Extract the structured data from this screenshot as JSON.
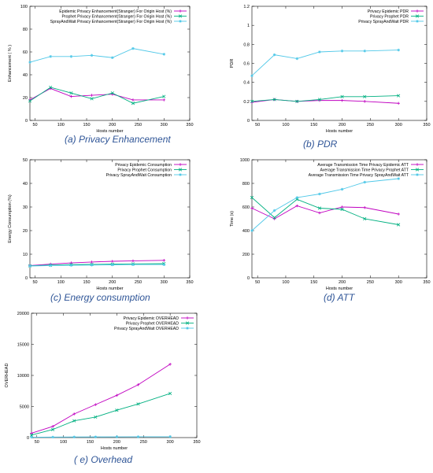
{
  "chart_data": [
    {
      "type": "line",
      "caption": "(a) Privacy Enhancement",
      "xlabel": "Hosts number",
      "ylabel": "Enhancement ( % )",
      "xlim": [
        40,
        350
      ],
      "ylim": [
        0,
        100
      ],
      "xticks": [
        50,
        100,
        150,
        200,
        250,
        300,
        350
      ],
      "yticks": [
        0,
        20,
        40,
        60,
        80,
        100
      ],
      "grid": false,
      "legend": "top-right",
      "series": [
        {
          "name": "Epidemic Privacy Enhancement(Stranger) For Origin Host (%)",
          "color": "#c000c0",
          "x": [
            40,
            80,
            120,
            160,
            200,
            240,
            300
          ],
          "y": [
            18,
            28,
            21,
            22,
            23,
            18,
            18
          ]
        },
        {
          "name": "Prophet  Privacy Enhancement(Stranger) For Origin Host (%)",
          "color": "#00b080",
          "x": [
            40,
            80,
            120,
            160,
            200,
            240,
            300
          ],
          "y": [
            17,
            29,
            24,
            19,
            24,
            15,
            21
          ]
        },
        {
          "name": "SprayAndWait  Privacy Enhancement(Stranger) For Origin Host (%)",
          "color": "#50c8e8",
          "x": [
            40,
            80,
            120,
            160,
            200,
            240,
            300
          ],
          "y": [
            51,
            56,
            56,
            57,
            55,
            63,
            58
          ]
        }
      ]
    },
    {
      "type": "line",
      "caption": "(b) PDR",
      "xlabel": "Hosts number",
      "ylabel": "PDR",
      "xlim": [
        40,
        350
      ],
      "ylim": [
        0,
        1.2
      ],
      "xticks": [
        50,
        100,
        150,
        200,
        250,
        300,
        350
      ],
      "yticks": [
        0,
        0.2,
        0.4,
        0.6,
        0.8,
        1,
        1.2
      ],
      "grid": false,
      "legend": "top-right",
      "series": [
        {
          "name": "Privacy Epidemic PDR",
          "color": "#c000c0",
          "x": [
            40,
            80,
            120,
            160,
            200,
            240,
            300
          ],
          "y": [
            0.19,
            0.22,
            0.2,
            0.21,
            0.21,
            0.2,
            0.18
          ]
        },
        {
          "name": "Privacy Prophet PDR",
          "color": "#00b080",
          "x": [
            40,
            80,
            120,
            160,
            200,
            240,
            300
          ],
          "y": [
            0.2,
            0.22,
            0.2,
            0.22,
            0.25,
            0.25,
            0.26
          ]
        },
        {
          "name": "Privacy SprayAndWait PDR",
          "color": "#50c8e8",
          "x": [
            40,
            80,
            120,
            160,
            200,
            240,
            300
          ],
          "y": [
            0.47,
            0.69,
            0.65,
            0.72,
            0.73,
            0.73,
            0.74
          ]
        }
      ]
    },
    {
      "type": "line",
      "caption": "(c) Energy consumption",
      "xlabel": "Hosts number",
      "ylabel": "Energy Consumption (%)",
      "xlim": [
        40,
        350
      ],
      "ylim": [
        0,
        50
      ],
      "xticks": [
        50,
        100,
        150,
        200,
        250,
        300,
        350
      ],
      "yticks": [
        0,
        10,
        20,
        30,
        40,
        50
      ],
      "grid": false,
      "legend": "top-right",
      "series": [
        {
          "name": "Privacy Epidemic Consumption",
          "color": "#c000c0",
          "x": [
            40,
            80,
            120,
            160,
            200,
            240,
            300
          ],
          "y": [
            5.2,
            5.8,
            6.3,
            6.7,
            7.0,
            7.2,
            7.4
          ]
        },
        {
          "name": "Privacy Prophet Consumption",
          "color": "#00b080",
          "x": [
            40,
            80,
            120,
            160,
            200,
            240,
            300
          ],
          "y": [
            5.1,
            5.4,
            5.6,
            5.7,
            5.8,
            5.9,
            6.0
          ]
        },
        {
          "name": "Privacy SprayAndWait Consumption",
          "color": "#50c8e8",
          "x": [
            40,
            80,
            120,
            160,
            200,
            240,
            300
          ],
          "y": [
            5.0,
            5.2,
            5.3,
            5.4,
            5.5,
            5.6,
            5.6
          ]
        }
      ]
    },
    {
      "type": "line",
      "caption": "(d) ATT",
      "xlabel": "Hosts number",
      "ylabel": "Time (s)",
      "xlim": [
        40,
        350
      ],
      "ylim": [
        0,
        1000
      ],
      "xticks": [
        50,
        100,
        150,
        200,
        250,
        300,
        350
      ],
      "yticks": [
        0,
        200,
        400,
        600,
        800,
        1000
      ],
      "grid": false,
      "legend": "top-right",
      "series": [
        {
          "name": "Average Transmission Time Privacy Epidemic ATT",
          "color": "#c000c0",
          "x": [
            40,
            80,
            120,
            160,
            200,
            240,
            300
          ],
          "y": [
            590,
            500,
            610,
            550,
            600,
            595,
            540
          ]
        },
        {
          "name": "Average Transmission Time Privacy Prophet ATT",
          "color": "#00b080",
          "x": [
            40,
            80,
            120,
            160,
            200,
            240,
            300
          ],
          "y": [
            680,
            510,
            665,
            590,
            580,
            500,
            450
          ]
        },
        {
          "name": "Average Transmission Time Privacy SprayAndWait ATT",
          "color": "#50c8e8",
          "x": [
            40,
            80,
            120,
            160,
            200,
            240,
            300
          ],
          "y": [
            400,
            570,
            680,
            710,
            750,
            810,
            840
          ]
        }
      ]
    },
    {
      "type": "line",
      "caption": "( e) Overhead",
      "xlabel": "Hosts number",
      "ylabel": "OVERHEAD",
      "xlim": [
        40,
        350
      ],
      "ylim": [
        0,
        20000
      ],
      "xticks": [
        50,
        100,
        150,
        200,
        250,
        300,
        350
      ],
      "yticks": [
        0,
        5000,
        10000,
        15000,
        20000
      ],
      "grid": false,
      "legend": "top-right",
      "series": [
        {
          "name": "Privacy Epidemic OVERHEAD",
          "color": "#c000c0",
          "x": [
            40,
            80,
            120,
            160,
            200,
            240,
            300
          ],
          "y": [
            700,
            1800,
            3800,
            5300,
            6800,
            8500,
            11800
          ]
        },
        {
          "name": "Privacy Prophet OVERHEAD",
          "color": "#00b080",
          "x": [
            40,
            80,
            120,
            160,
            200,
            240,
            300
          ],
          "y": [
            400,
            1300,
            2700,
            3300,
            4400,
            5400,
            7100
          ]
        },
        {
          "name": "Privacy SprayAndWait OVERHEAD",
          "color": "#50c8e8",
          "x": [
            40,
            80,
            120,
            160,
            200,
            240,
            300
          ],
          "y": [
            60,
            80,
            100,
            110,
            120,
            130,
            140
          ]
        }
      ]
    }
  ]
}
